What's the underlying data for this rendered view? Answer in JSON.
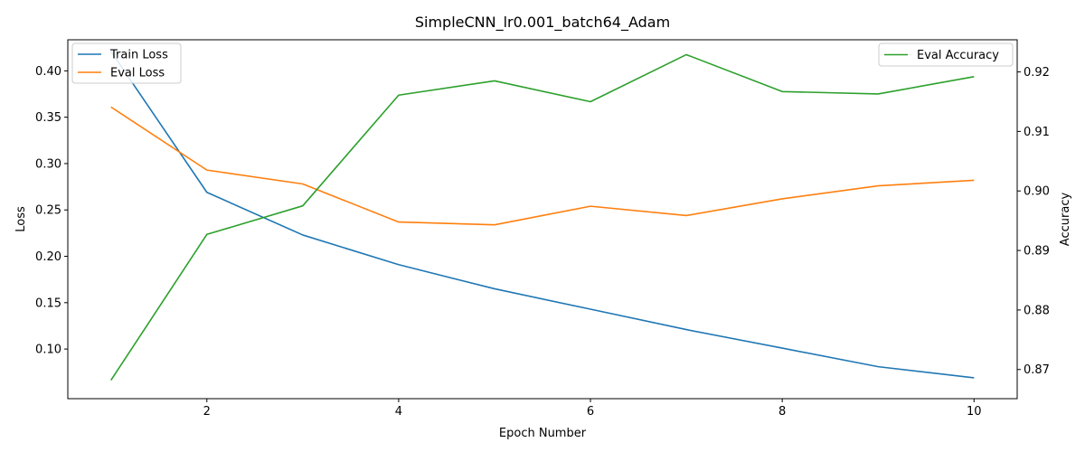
{
  "chart_data": {
    "type": "line",
    "title": "SimpleCNN_lr0.001_batch64_Adam",
    "xlabel": "Epoch Number",
    "ylabel_left": "Loss",
    "ylabel_right": "Accuracy",
    "x": [
      1,
      2,
      3,
      4,
      5,
      6,
      7,
      8,
      9,
      10
    ],
    "xlim": [
      0.55,
      10.45
    ],
    "ylim_left": [
      0.0465,
      0.4335
    ],
    "ylim_right": [
      0.8651,
      0.9254
    ],
    "x_ticks": [
      2,
      4,
      6,
      8,
      10
    ],
    "y_ticks_left": [
      0.1,
      0.15,
      0.2,
      0.25,
      0.3,
      0.35,
      0.4
    ],
    "y_tick_labels_left": [
      "0.10",
      "0.15",
      "0.20",
      "0.25",
      "0.30",
      "0.35",
      "0.40"
    ],
    "y_ticks_right": [
      0.87,
      0.88,
      0.89,
      0.9,
      0.91,
      0.92
    ],
    "y_tick_labels_right": [
      "0.87",
      "0.88",
      "0.89",
      "0.90",
      "0.91",
      "0.92"
    ],
    "grid": false,
    "series_left": [
      {
        "name": "Train Loss",
        "color": "#1f77b4",
        "values": [
          0.421,
          0.269,
          0.223,
          0.191,
          0.165,
          0.143,
          0.121,
          0.101,
          0.081,
          0.069
        ]
      },
      {
        "name": "Eval Loss",
        "color": "#ff7f0e",
        "values": [
          0.361,
          0.293,
          0.278,
          0.237,
          0.234,
          0.254,
          0.244,
          0.262,
          0.276,
          0.282
        ]
      }
    ],
    "series_right": [
      {
        "name": "Eval Accuracy",
        "color": "#2ca02c",
        "values": [
          0.8682,
          0.8927,
          0.8975,
          0.9161,
          0.9185,
          0.915,
          0.9229,
          0.9167,
          0.9163,
          0.9192
        ]
      }
    ],
    "legend_left_placement": "upper-left",
    "legend_right_placement": "upper-right"
  }
}
